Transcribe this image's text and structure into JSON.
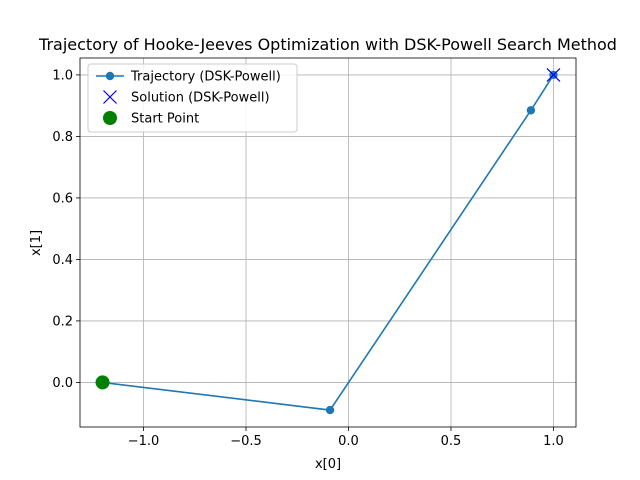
{
  "chart_data": {
    "type": "line",
    "title": "Trajectory of Hooke-Jeeves Optimization with DSK-Powell Search Method",
    "xlabel": "x[0]",
    "ylabel": "x[1]",
    "xlim": [
      -1.31,
      1.11
    ],
    "ylim": [
      -0.145,
      1.055
    ],
    "xticks": [
      -1.0,
      -0.5,
      0.0,
      0.5,
      1.0
    ],
    "xtick_labels": [
      "−1.0",
      "−0.5",
      "0.0",
      "0.5",
      "1.0"
    ],
    "yticks": [
      0.0,
      0.2,
      0.4,
      0.6,
      0.8,
      1.0
    ],
    "ytick_labels": [
      "0.0",
      "0.2",
      "0.4",
      "0.6",
      "0.8",
      "1.0"
    ],
    "grid": true,
    "legend_position": "top-left",
    "series": [
      {
        "name": "Trajectory (DSK-Powell)",
        "kind": "line-marker",
        "color": "#1f77b4",
        "x": [
          -1.2,
          -0.09,
          0.89,
          1.0
        ],
        "y": [
          0.0,
          -0.09,
          0.885,
          1.0
        ]
      },
      {
        "name": "Solution (DSK-Powell)",
        "kind": "x-marker",
        "color": "#0000ff",
        "x": [
          1.0
        ],
        "y": [
          1.0
        ]
      },
      {
        "name": "Start Point",
        "kind": "big-dot",
        "color": "#008000",
        "x": [
          -1.2
        ],
        "y": [
          0.0
        ]
      }
    ]
  }
}
